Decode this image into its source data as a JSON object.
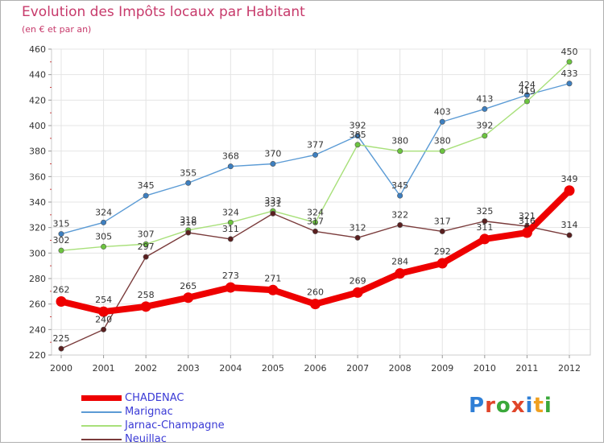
{
  "title": "Evolution des Impôts locaux par Habitant",
  "subtitle": "(en € et par an)",
  "brand": {
    "letters": [
      "P",
      "r",
      "o",
      "x",
      "i",
      "t",
      "i"
    ],
    "colors": [
      "#2f7fd6",
      "#e0452a",
      "#3aa83a",
      "#e0452a",
      "#2f7fd6",
      "#f0a020",
      "#3aa83a"
    ]
  },
  "chart_data": {
    "type": "line",
    "title": "Evolution des Impôts locaux par Habitant",
    "subtitle": "(en € et par an)",
    "xlabel": "",
    "ylabel": "",
    "x": [
      "2000",
      "2001",
      "2002",
      "2003",
      "2004",
      "2005",
      "2006",
      "2007",
      "2008",
      "2009",
      "2010",
      "2011",
      "2012"
    ],
    "ylim": [
      220,
      460
    ],
    "yticks": [
      "220",
      "240",
      "260",
      "280",
      "300",
      "320",
      "340",
      "360",
      "380",
      "400",
      "420",
      "440",
      "460"
    ],
    "grid": true,
    "legend": "bottom-left",
    "series": [
      {
        "name": "Marignac",
        "color": "#5b9bd5",
        "marker": "#3d7fc0",
        "values": [
          315,
          324,
          345,
          355,
          368,
          370,
          377,
          392,
          345,
          403,
          413,
          424,
          433
        ],
        "labels": [
          "315",
          "324",
          "345",
          "355",
          "368",
          "370",
          "377",
          "392",
          "345",
          "403",
          "413",
          "424",
          "433"
        ]
      },
      {
        "name": "Jarnac-Champagne",
        "color": "#a8e07a",
        "marker": "#6cc43f",
        "values": [
          302,
          305,
          307,
          318,
          324,
          333,
          324,
          385,
          380,
          380,
          392,
          419,
          450
        ],
        "labels": [
          "302",
          "305",
          "307",
          "318",
          "324",
          "333",
          "324",
          "385",
          "380",
          "380",
          "392",
          "419",
          "450"
        ]
      },
      {
        "name": "Neuillac",
        "color": "#7a3b3b",
        "marker": "#5a1f1f",
        "values": [
          225,
          240,
          297,
          316,
          311,
          331,
          317,
          312,
          322,
          317,
          325,
          321,
          314
        ],
        "labels": [
          "225",
          "240",
          "297",
          "316",
          "311",
          "331",
          "317",
          "312",
          "322",
          "317",
          "325",
          "321",
          "314"
        ]
      },
      {
        "name": "CHADENAC",
        "color": "#ee0000",
        "marker": "#ee0000",
        "values": [
          262,
          254,
          258,
          265,
          273,
          271,
          260,
          269,
          284,
          292,
          311,
          316,
          349
        ],
        "labels": [
          "262",
          "254",
          "258",
          "265",
          "273",
          "271",
          "260",
          "269",
          "284",
          "292",
          "311",
          "316",
          "349"
        ]
      }
    ],
    "legend_entries": [
      {
        "name": "CHADENAC",
        "color": "#ee0000"
      },
      {
        "name": "Marignac",
        "color": "#5b9bd5"
      },
      {
        "name": "Jarnac-Champagne",
        "color": "#a8e07a"
      },
      {
        "name": "Neuillac",
        "color": "#7a3b3b"
      }
    ]
  }
}
